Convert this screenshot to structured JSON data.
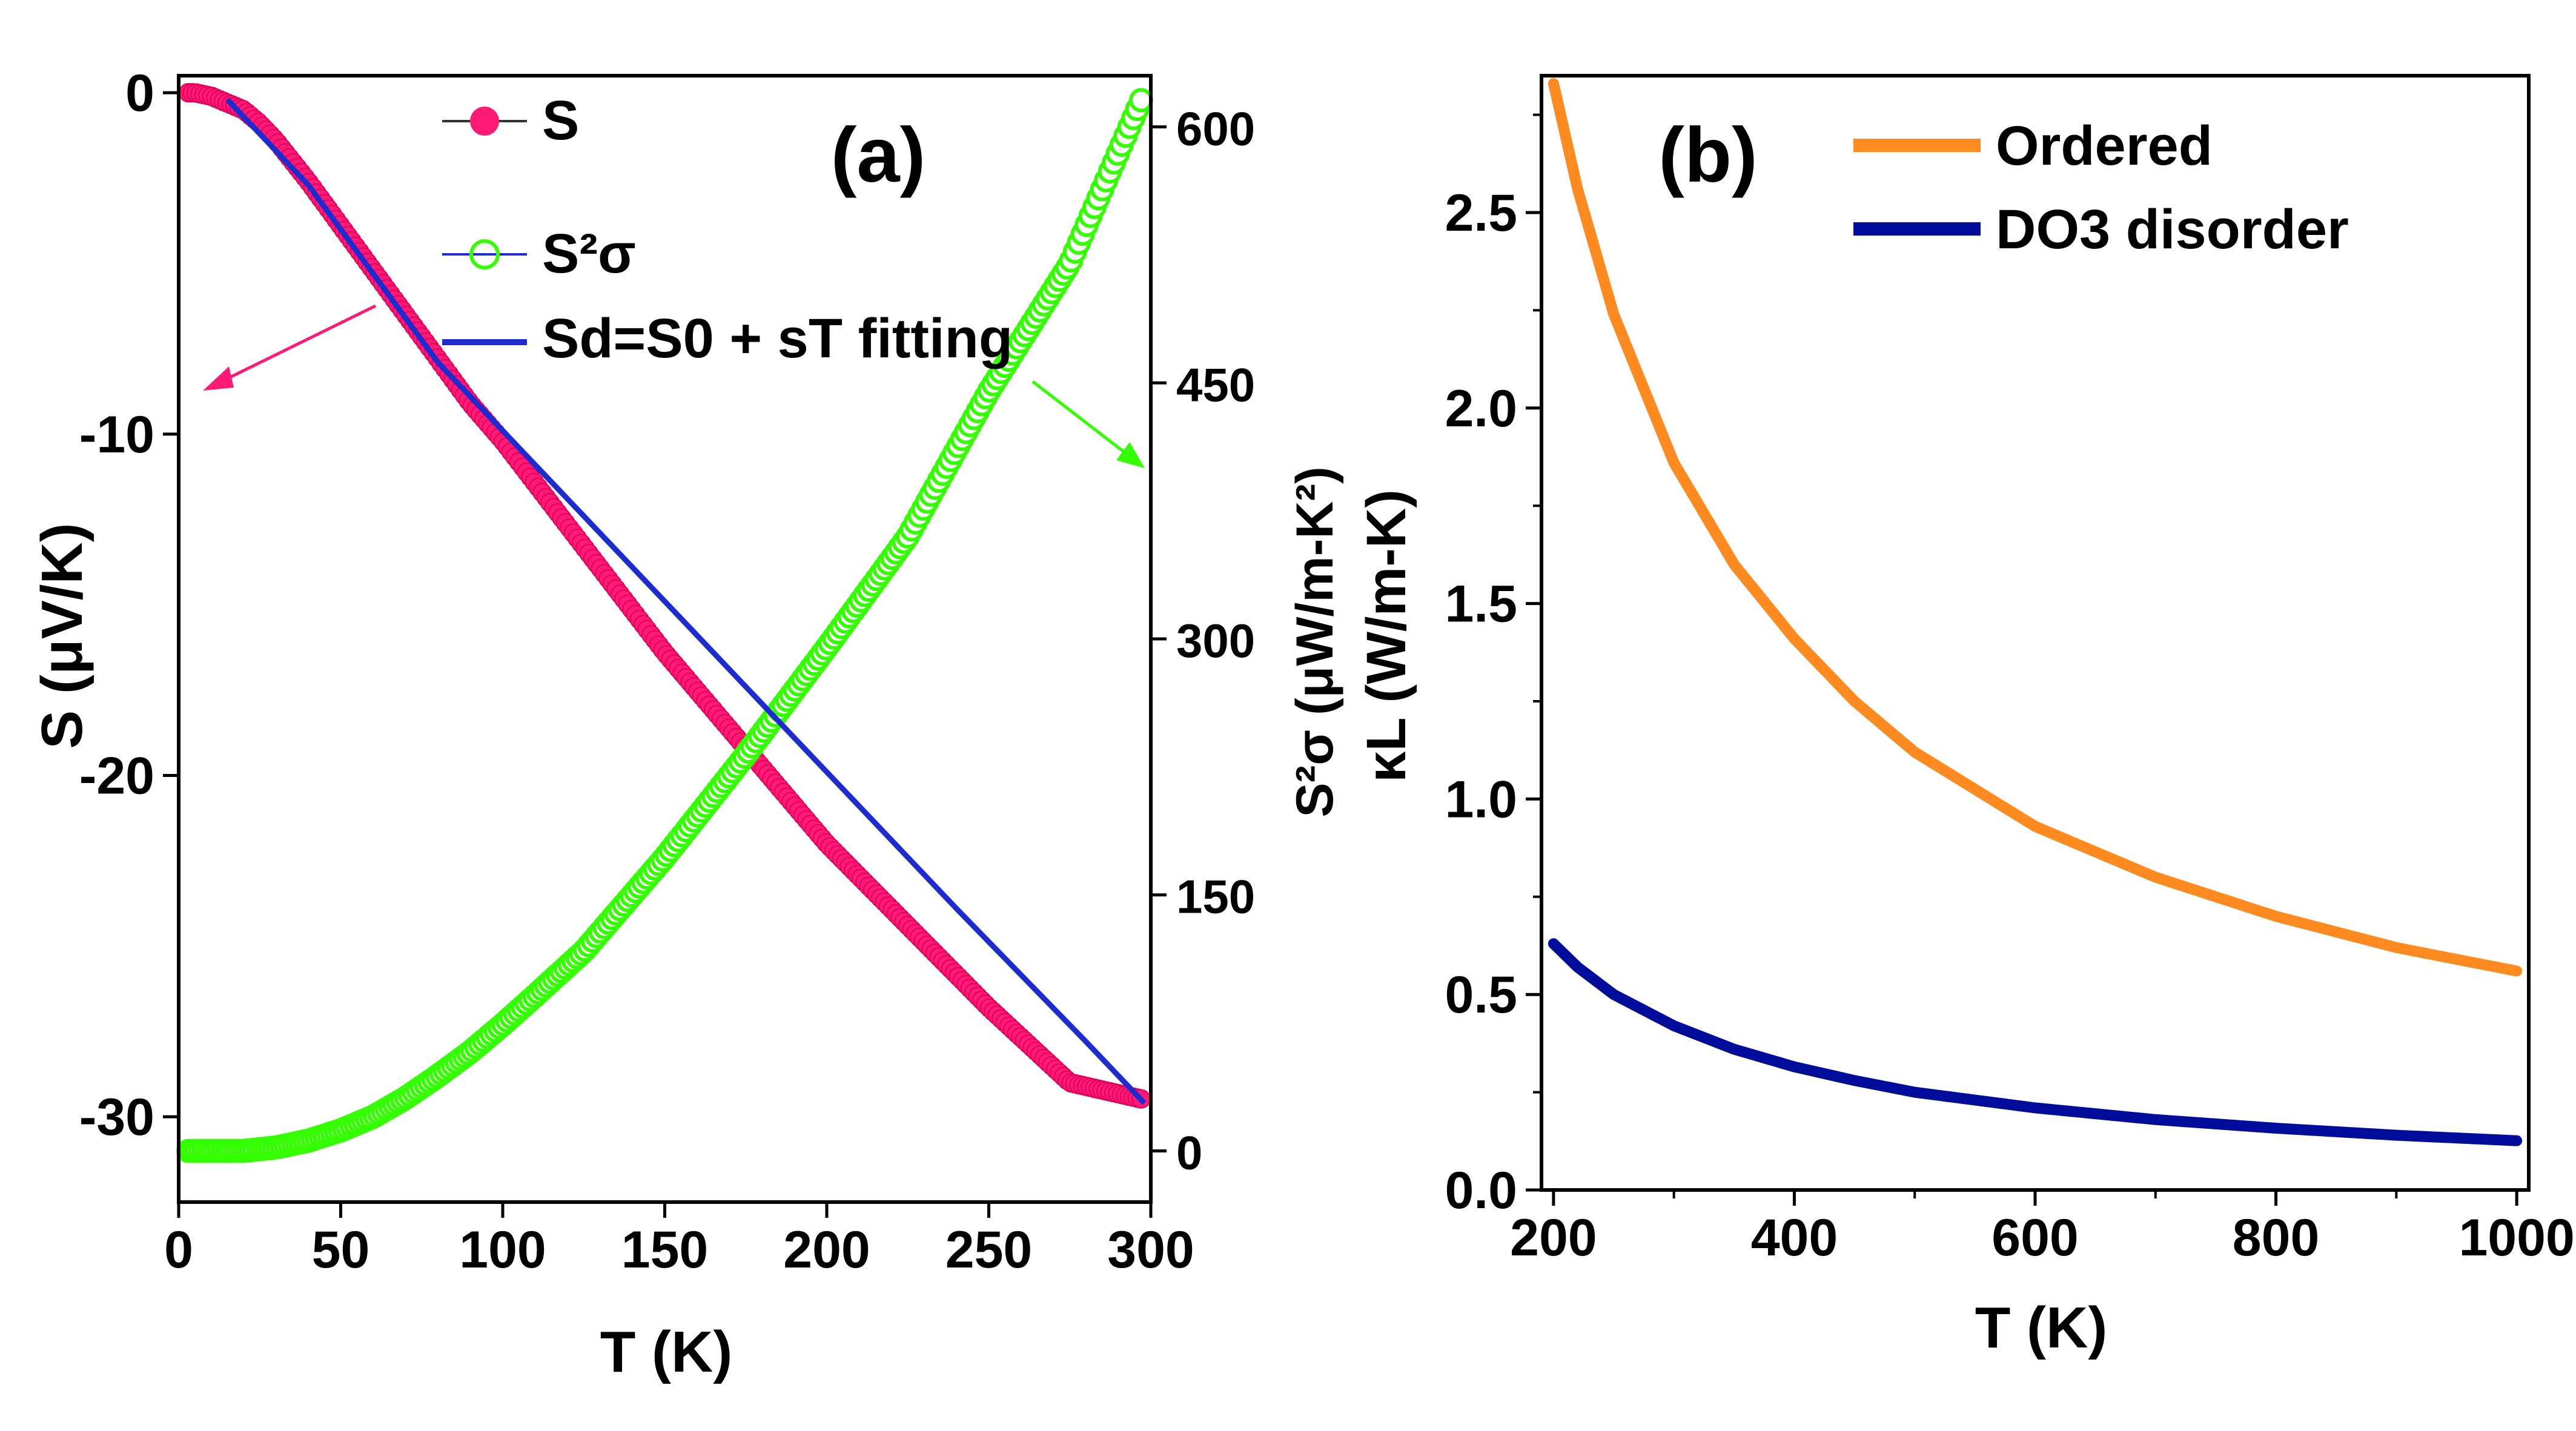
{
  "chart_data": [
    {
      "panel_label": "(a)",
      "type": "scatter",
      "xlabel": "T (K)",
      "xlim": [
        0,
        300
      ],
      "x_ticks": [
        0,
        50,
        100,
        150,
        200,
        250,
        300
      ],
      "ylabel_left": "S (μV/K)",
      "ylim_left": [
        -32.5,
        0.5
      ],
      "y_ticks_left": [
        0,
        -10,
        -20,
        -30
      ],
      "ylabel_right": "S²σ (μW/m-K²)",
      "ylim_right": [
        -30,
        630
      ],
      "y_ticks_right": [
        0,
        150,
        300,
        450,
        600
      ],
      "legend_location": "top-center",
      "legend": [
        "S",
        "S²σ",
        "Sd=S0 + sT fitting"
      ],
      "series": [
        {
          "name": "S",
          "axis": "left",
          "color": "#ff1a75",
          "marker": "circle-filled",
          "x": [
            3,
            5,
            10,
            15,
            20,
            25,
            30,
            40,
            50,
            60,
            70,
            80,
            90,
            100,
            125,
            150,
            175,
            200,
            225,
            250,
            275,
            298
          ],
          "y": [
            0.0,
            0.0,
            -0.1,
            -0.3,
            -0.5,
            -0.9,
            -1.4,
            -2.6,
            -3.9,
            -5.2,
            -6.5,
            -7.8,
            -9.1,
            -10.2,
            -13.3,
            -16.4,
            -19.2,
            -22.0,
            -24.4,
            -26.8,
            -29.0,
            -29.5
          ]
        },
        {
          "name": "S²σ",
          "axis": "right",
          "color": "#33ff00",
          "marker": "circle-open",
          "x": [
            3,
            10,
            20,
            30,
            40,
            50,
            60,
            70,
            80,
            90,
            100,
            110,
            125,
            150,
            175,
            200,
            225,
            250,
            275,
            298
          ],
          "y": [
            0,
            0,
            0,
            2,
            6,
            12,
            20,
            31,
            44,
            58,
            74,
            91,
            117,
            172,
            232,
            295,
            360,
            445,
            520,
            620
          ]
        },
        {
          "name": "Sd=S0 + sT fitting",
          "axis": "left",
          "color": "#1c2cd0",
          "marker": "line",
          "x": [
            15,
            40,
            80,
            120,
            160,
            200,
            240,
            280,
            298
          ],
          "y": [
            -0.2,
            -2.7,
            -7.9,
            -11.9,
            -15.9,
            -19.9,
            -23.9,
            -27.8,
            -29.6
          ]
        }
      ]
    },
    {
      "panel_label": "(b)",
      "type": "line",
      "xlabel": "T (K)",
      "xlim": [
        190,
        1010
      ],
      "x_ticks": [
        200,
        400,
        600,
        800,
        1000
      ],
      "ylabel": "κL (W/m-K)",
      "ylim": [
        0,
        2.85
      ],
      "y_ticks": [
        0.0,
        0.5,
        1.0,
        1.5,
        2.0,
        2.5
      ],
      "legend_location": "top-right",
      "series": [
        {
          "name": "Ordered",
          "color": "#ff8a1f",
          "x": [
            200,
            220,
            250,
            300,
            350,
            400,
            450,
            500,
            600,
            700,
            800,
            900,
            1000
          ],
          "y": [
            2.83,
            2.56,
            2.24,
            1.86,
            1.6,
            1.41,
            1.25,
            1.12,
            0.93,
            0.8,
            0.7,
            0.62,
            0.56
          ]
        },
        {
          "name": "DO3 disorder",
          "color": "#000d9a",
          "x": [
            200,
            220,
            250,
            300,
            350,
            400,
            450,
            500,
            600,
            700,
            800,
            900,
            1000
          ],
          "y": [
            0.63,
            0.57,
            0.5,
            0.42,
            0.36,
            0.315,
            0.28,
            0.25,
            0.21,
            0.18,
            0.158,
            0.14,
            0.126
          ]
        }
      ]
    }
  ]
}
